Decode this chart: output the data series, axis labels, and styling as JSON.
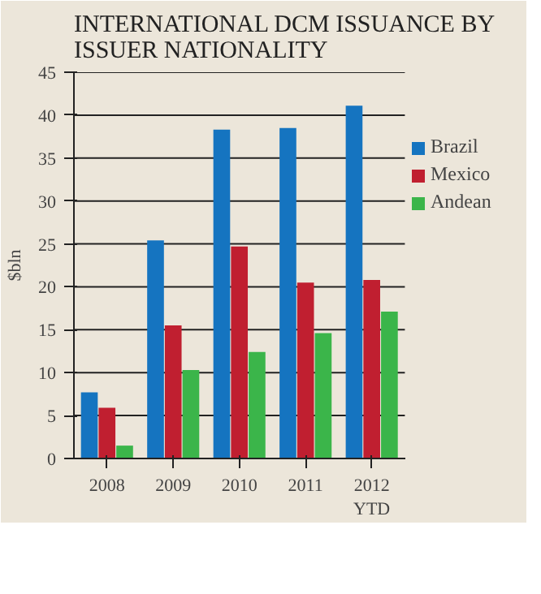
{
  "chart_data": {
    "type": "bar",
    "title": "INTERNATIONAL DCM ISSUANCE BY ISSUER NATIONALITY",
    "ylabel": "$bln",
    "categories": [
      "2008",
      "2009",
      "2010",
      "2011",
      "2012\nYTD"
    ],
    "series": [
      {
        "name": "Brazil",
        "color": "#1574c0",
        "values": [
          7.7,
          25.4,
          38.3,
          38.5,
          41.1
        ]
      },
      {
        "name": "Mexico",
        "color": "#c01f30",
        "values": [
          5.9,
          15.5,
          24.7,
          20.5,
          20.8
        ]
      },
      {
        "name": "Andean",
        "color": "#3bb54a",
        "values": [
          1.5,
          10.3,
          12.4,
          14.6,
          17.1
        ]
      }
    ],
    "ylim": [
      0,
      45
    ],
    "yticks": [
      0,
      5,
      10,
      15,
      20,
      25,
      30,
      35,
      40,
      45
    ],
    "grid": "y",
    "legend": "right"
  }
}
